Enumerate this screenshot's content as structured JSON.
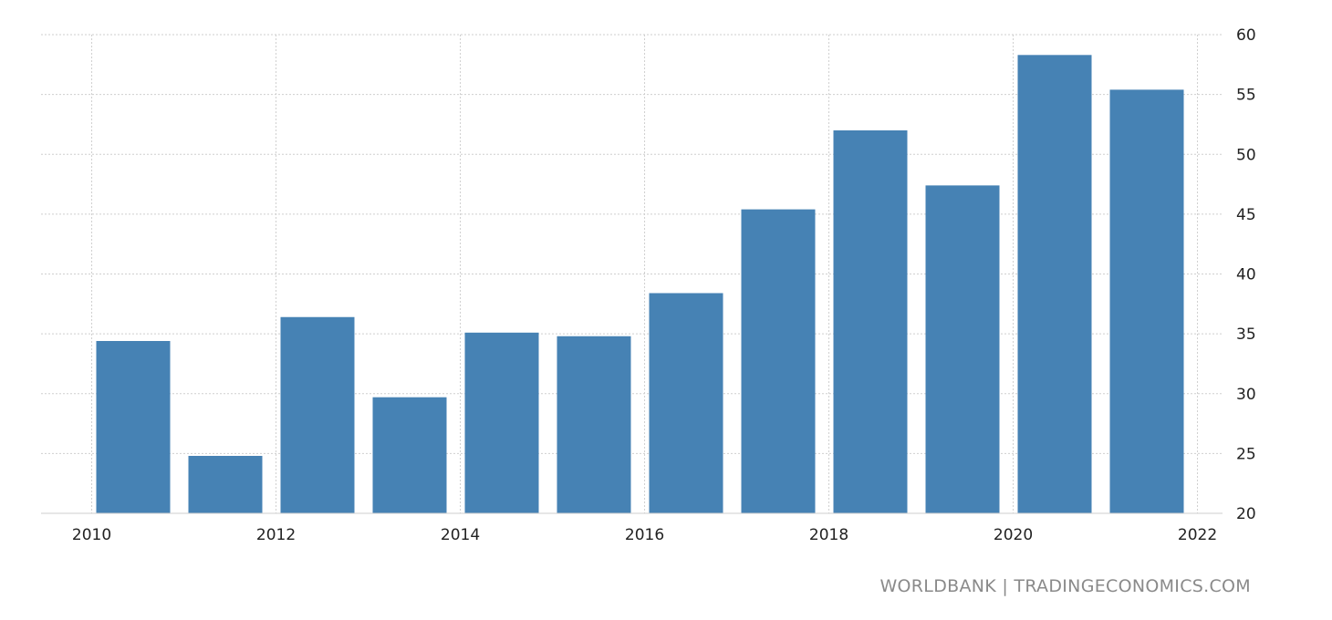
{
  "chart_data": {
    "type": "bar",
    "title": "",
    "xlabel": "",
    "ylabel": "",
    "x": [
      2010.45,
      2011.45,
      2012.45,
      2013.45,
      2014.45,
      2015.45,
      2016.45,
      2017.45,
      2018.45,
      2019.45,
      2020.45,
      2021.45
    ],
    "values": [
      34.4,
      24.8,
      36.4,
      29.7,
      35.1,
      34.8,
      38.4,
      45.4,
      52.0,
      47.4,
      58.3,
      55.4
    ],
    "xlim": [
      2009.45,
      2022.2
    ],
    "ylim": [
      20,
      60
    ],
    "x_ticks": [
      "2010",
      "2012",
      "2014",
      "2016",
      "2018",
      "2020",
      "2022"
    ],
    "y_ticks": [
      "20",
      "25",
      "30",
      "35",
      "40",
      "45",
      "50",
      "55",
      "60"
    ],
    "y_axis_side": "right",
    "grid": true,
    "bar_color": "#4682b4",
    "grid_color": "#cfcfcf"
  },
  "footer": {
    "credit": "WORLDBANK | TRADINGECONOMICS.COM"
  }
}
